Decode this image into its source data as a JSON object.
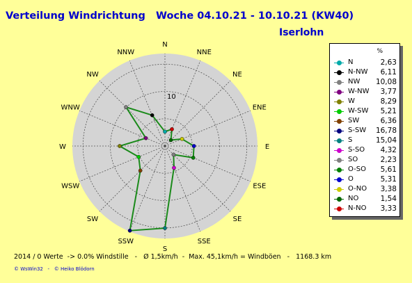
{
  "title": "Verteilung Windrichtung   Woche 04.10.21 - 10.10.21 (KW40)",
  "location": "Iserlohn",
  "footer_stats": "2014 / 0 Werte  -> 0.0% Windstille   -   Ø 1,5km/h  -  Max. 45,1km/h = Windböen   -   1168.3 km",
  "footer_credit": "© WsWin32   -   © Heiko Blödorn",
  "colors": {
    "background": "#ffff99",
    "title": "#0000cc",
    "line": "#1a8a1a",
    "disc": "#d4d4d4"
  },
  "chart_data": {
    "type": "radar",
    "unit": "%",
    "ring_label": "10",
    "rmax": 20,
    "direction_labels": [
      "N",
      "NNE",
      "NE",
      "ENE",
      "E",
      "ESE",
      "SE",
      "SSE",
      "S",
      "SSW",
      "SW",
      "WSW",
      "W",
      "WNW",
      "NW",
      "NNW"
    ],
    "legend": [
      {
        "name": "N",
        "value": "2,63",
        "color": "#00aaaa"
      },
      {
        "name": "N-NW",
        "value": "6,11",
        "color": "#000000"
      },
      {
        "name": "NW",
        "value": "10,08",
        "color": "#808080"
      },
      {
        "name": "W-NW",
        "value": "3,77",
        "color": "#800080"
      },
      {
        "name": "W",
        "value": "8,29",
        "color": "#808000"
      },
      {
        "name": "W-SW",
        "value": "5,21",
        "color": "#00cc00"
      },
      {
        "name": "SW",
        "value": "6,36",
        "color": "#804000"
      },
      {
        "name": "S-SW",
        "value": "16,78",
        "color": "#000080"
      },
      {
        "name": "S",
        "value": "15,04",
        "color": "#008080"
      },
      {
        "name": "S-SO",
        "value": "4,32",
        "color": "#cc00cc"
      },
      {
        "name": "SO",
        "value": "2,23",
        "color": "#808080"
      },
      {
        "name": "O-SO",
        "value": "5,61",
        "color": "#008000"
      },
      {
        "name": "O",
        "value": "5,31",
        "color": "#0000cc"
      },
      {
        "name": "O-NO",
        "value": "3,38",
        "color": "#cccc00"
      },
      {
        "name": "NO",
        "value": "1,54",
        "color": "#006600"
      },
      {
        "name": "N-NO",
        "value": "3,33",
        "color": "#cc0000"
      }
    ],
    "values": [
      2.63,
      3.33,
      1.54,
      3.38,
      5.31,
      5.61,
      2.23,
      4.32,
      15.04,
      16.78,
      6.36,
      5.21,
      8.29,
      3.77,
      10.08,
      6.11
    ],
    "point_colors": [
      "#00aaaa",
      "#cc0000",
      "#006600",
      "#cccc00",
      "#0000cc",
      "#008000",
      "#808080",
      "#cc00cc",
      "#008080",
      "#000080",
      "#804000",
      "#00cc00",
      "#808000",
      "#800080",
      "#808080",
      "#000000"
    ]
  }
}
